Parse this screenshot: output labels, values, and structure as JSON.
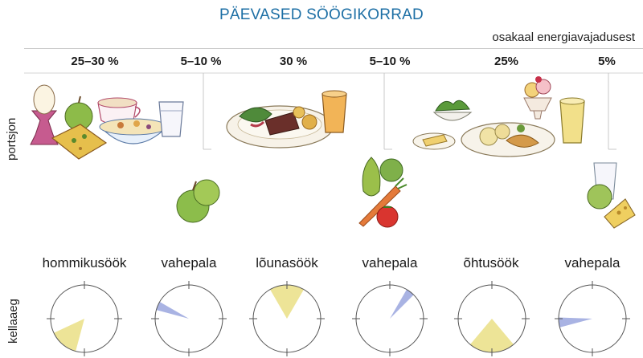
{
  "title": "PÄEVASED SÖÖGIKORRAD",
  "subtitle": "osakaal energiavajadusest",
  "row_labels": {
    "portion": "portsjon",
    "time": "kellaaeg"
  },
  "meals": [
    {
      "percent": "25–30 %",
      "name": "hommikusöök",
      "wedge_color": "#ede497"
    },
    {
      "percent": "5–10 %",
      "name": "vahepala",
      "wedge_color": "#a9b3e3"
    },
    {
      "percent": "30 %",
      "name": "lõunasöök",
      "wedge_color": "#ede497"
    },
    {
      "percent": "5–10 %",
      "name": "vahepala",
      "wedge_color": "#a9b3e3"
    },
    {
      "percent": "25%",
      "name": "õhtusöök",
      "wedge_color": "#ede497"
    },
    {
      "percent": "5%",
      "name": "vahepala",
      "wedge_color": "#a9b3e3"
    }
  ]
}
